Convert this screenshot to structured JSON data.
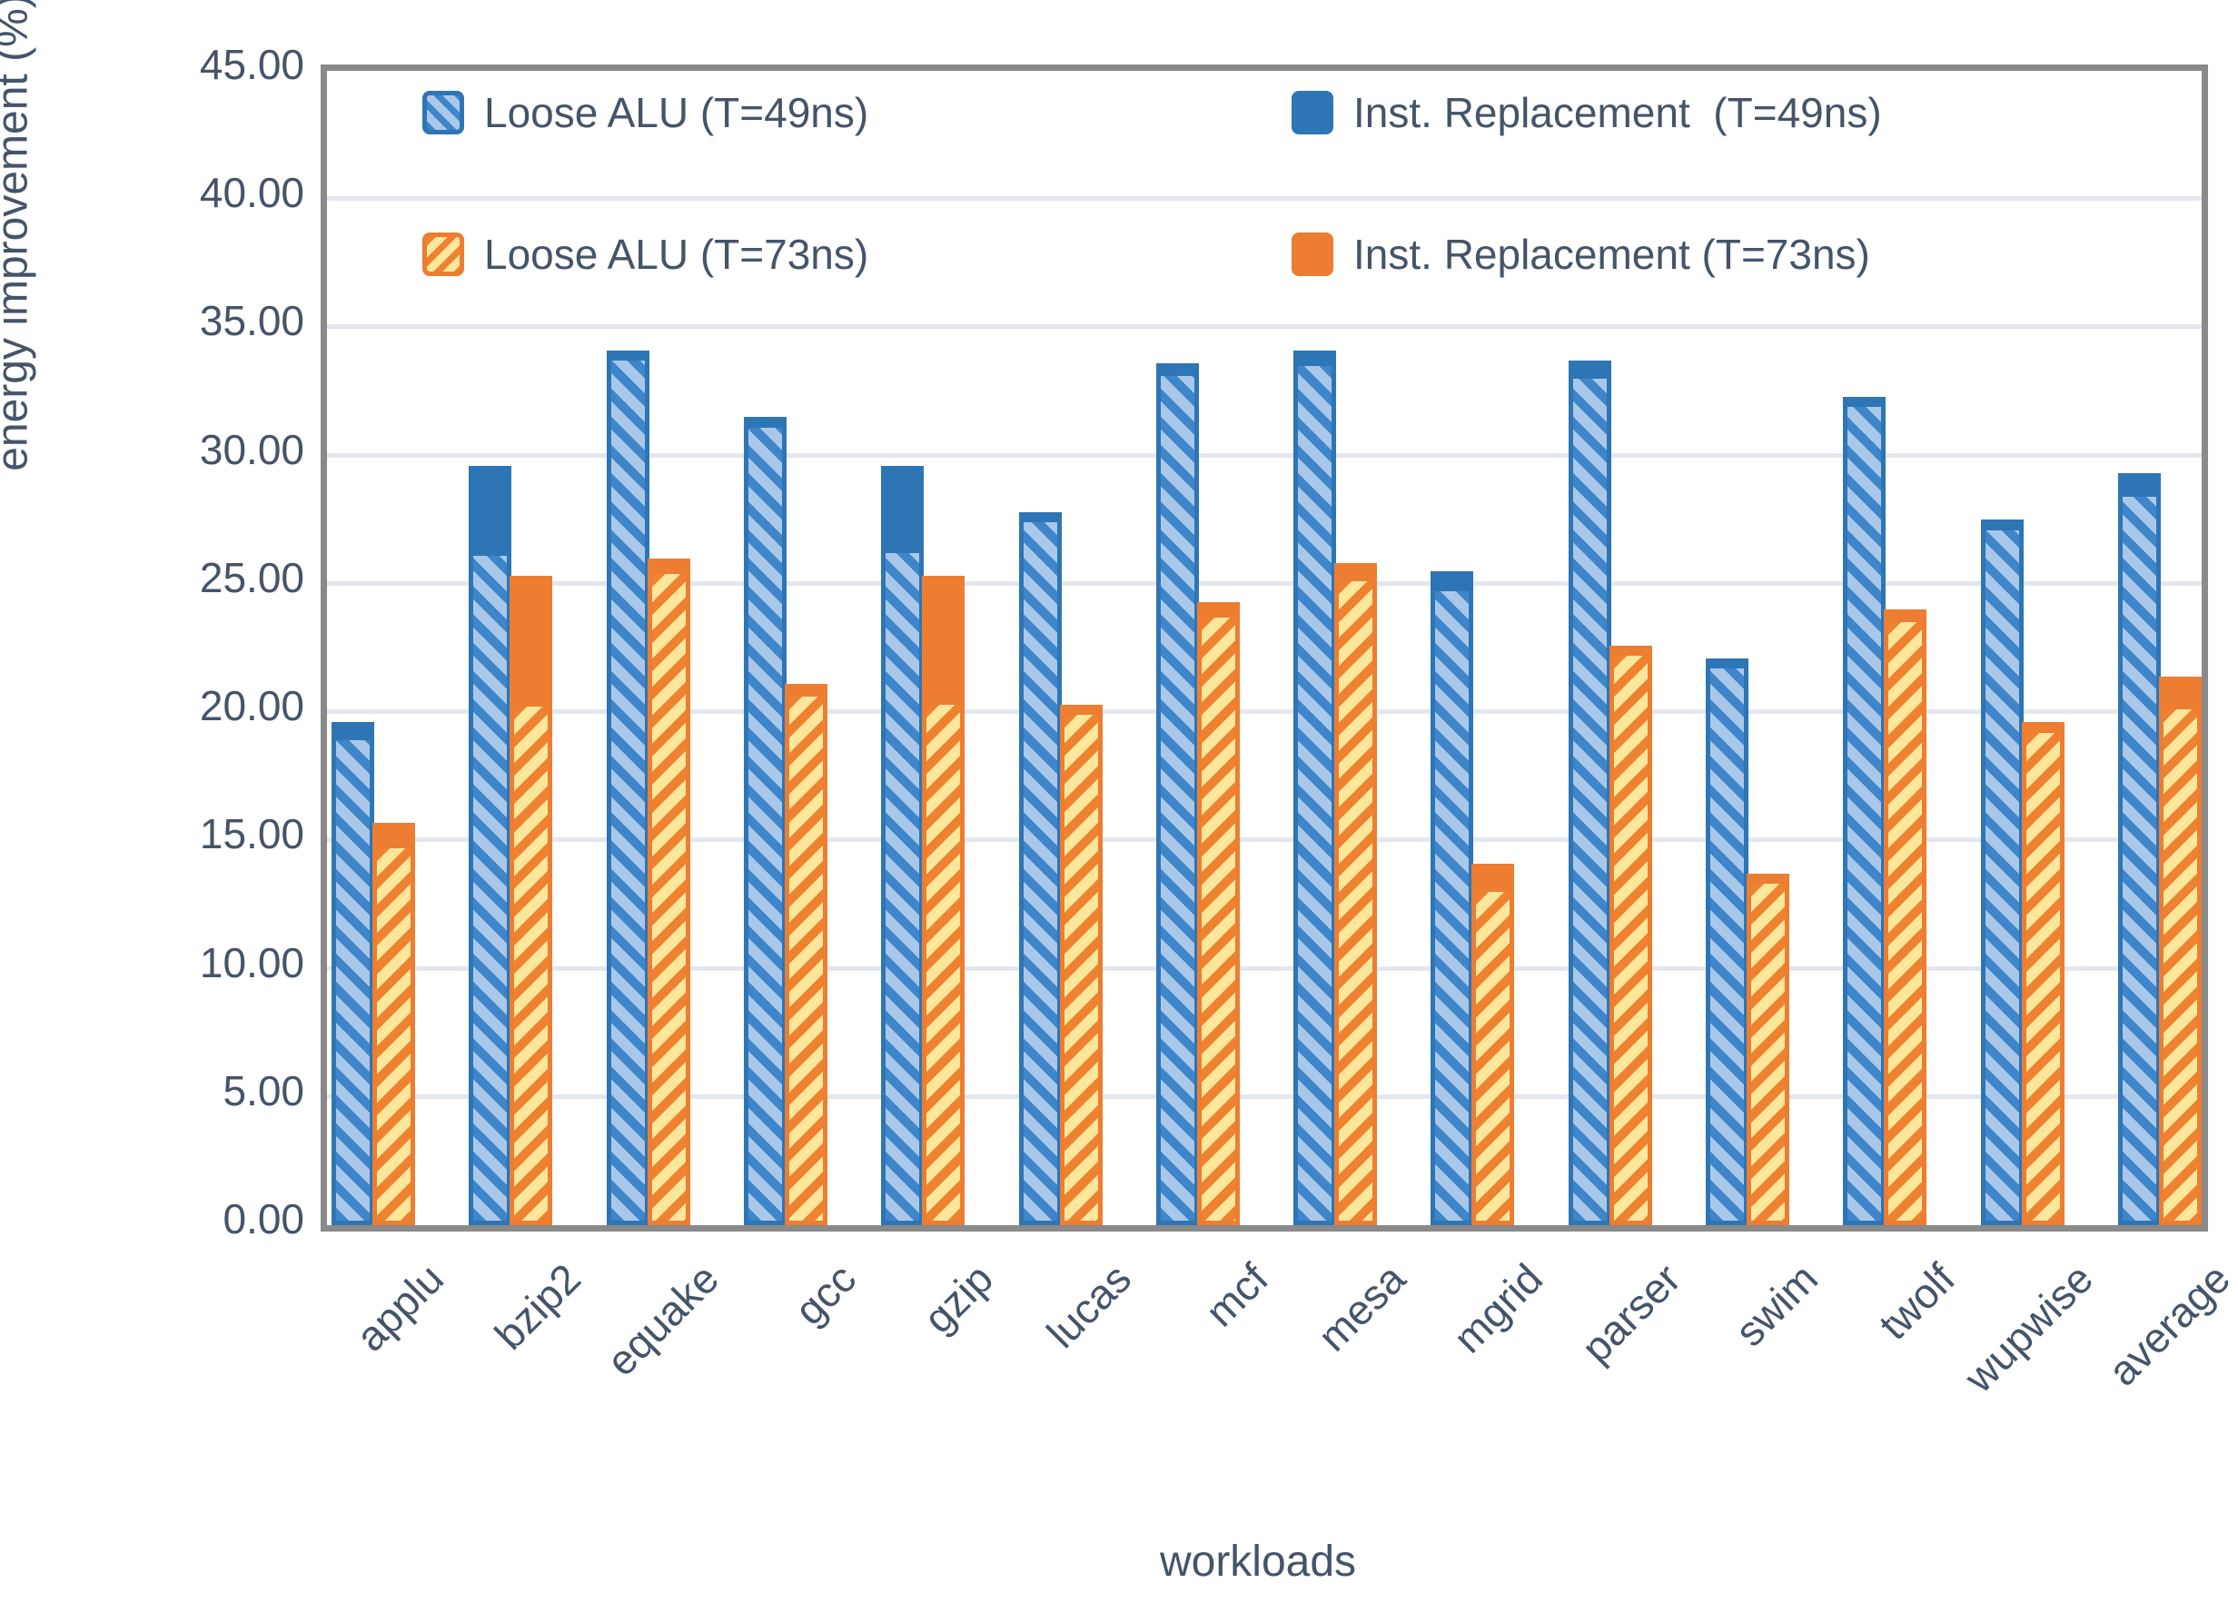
{
  "chart_data": {
    "type": "bar",
    "title": "",
    "xlabel": "workloads",
    "ylabel": "energy improvement (%)",
    "ylim": [
      0,
      45
    ],
    "ytick_step": 5,
    "ytick_labels": [
      "0.00",
      "5.00",
      "10.00",
      "15.00",
      "20.00",
      "25.00",
      "30.00",
      "35.00",
      "40.00",
      "45.00"
    ],
    "grid": true,
    "legend_position": "top-inside-two-rows",
    "categories": [
      "applu",
      "bzip2",
      "equake",
      "gcc",
      "gzip",
      "lucas",
      "mcf",
      "mesa",
      "mgrid",
      "parser",
      "swim",
      "twolf",
      "wupwise",
      "average"
    ],
    "series": [
      {
        "name": "Loose ALU (T=49ns)",
        "style": "hatched",
        "color_key": "blue",
        "values": [
          18.9,
          26.1,
          33.7,
          31.1,
          26.2,
          27.4,
          33.1,
          33.5,
          24.7,
          33.0,
          21.7,
          31.9,
          27.1,
          28.4
        ]
      },
      {
        "name": "Inst. Replacement  (T=49ns)",
        "style": "solid",
        "color_key": "blue",
        "values": [
          19.6,
          29.6,
          34.1,
          31.5,
          29.6,
          27.8,
          33.6,
          34.1,
          25.5,
          33.7,
          22.1,
          32.3,
          27.5,
          29.3
        ]
      },
      {
        "name": "Loose ALU (T=73ns)",
        "style": "hatched",
        "color_key": "orange",
        "values": [
          14.7,
          20.2,
          25.4,
          20.6,
          20.3,
          19.9,
          23.7,
          25.1,
          13.0,
          22.2,
          13.3,
          23.5,
          19.2,
          20.1
        ]
      },
      {
        "name": "Inst. Replacement (T=73ns)",
        "style": "solid",
        "color_key": "orange",
        "values": [
          15.7,
          25.3,
          26.0,
          21.1,
          25.3,
          20.3,
          24.3,
          25.8,
          14.1,
          22.6,
          13.7,
          24.0,
          19.6,
          21.4
        ]
      }
    ],
    "colors": {
      "blue_solid": "#2e75b6",
      "blue_hatch_bg": "#a9c8e9",
      "blue_hatch_stripe": "#3e86c9",
      "orange_solid": "#ed7d31",
      "orange_hatch_bg": "#fee79b",
      "orange_hatch_stripe": "#ee8230",
      "gridline": "#e3e7ee",
      "plot_border": "#8a8a8a",
      "text": "#44546a"
    }
  }
}
